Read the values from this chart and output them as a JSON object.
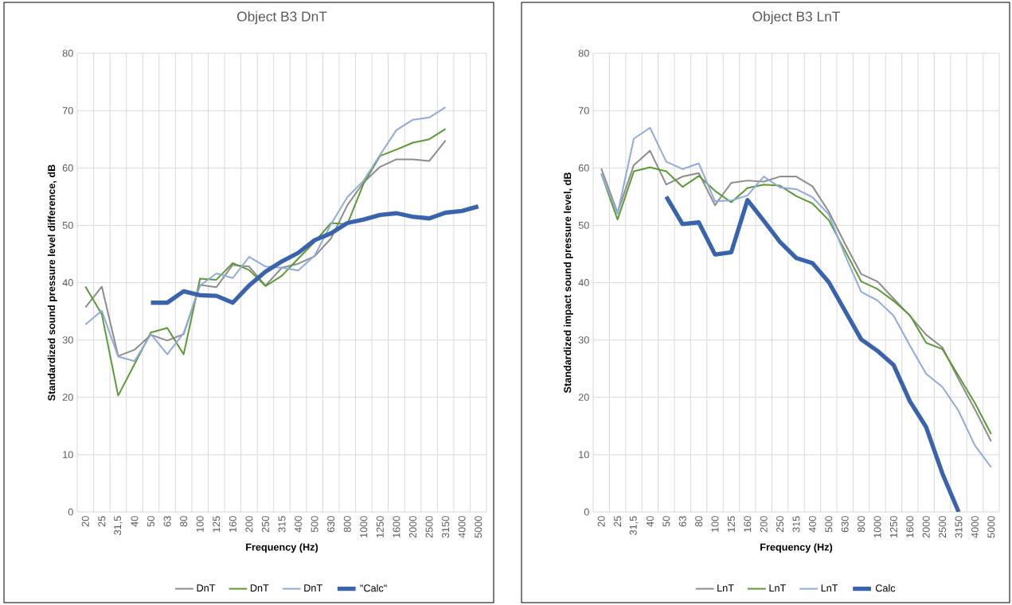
{
  "chart_data": [
    {
      "type": "line",
      "title": "Object B3 DnT",
      "xlabel": "Frequency (Hz)",
      "ylabel": "Standardized sound pressure level difference, dB",
      "categories": [
        "20",
        "25",
        "31,5",
        "40",
        "50",
        "63",
        "80",
        "100",
        "125",
        "160",
        "200",
        "250",
        "315",
        "400",
        "500",
        "630",
        "800",
        "1000",
        "1250",
        "1600",
        "2000",
        "2500",
        "3150",
        "4000",
        "5000"
      ],
      "series": [
        {
          "name": "DnT",
          "color": "#8c8c8c",
          "values": [
            35.7,
            39.3,
            27.2,
            28.3,
            30.9,
            29.9,
            31.0,
            39.6,
            39.2,
            43.1,
            42.8,
            39.5,
            42.6,
            43.3,
            44.6,
            47.7,
            53.5,
            57.5,
            60.2,
            61.5,
            61.5,
            61.2,
            64.8,
            null,
            null
          ]
        },
        {
          "name": "DnT",
          "color": "#5b9b35",
          "values": [
            39.3,
            34.5,
            20.3,
            25.8,
            31.3,
            32.1,
            27.5,
            40.7,
            40.5,
            43.4,
            42.2,
            39.4,
            41.2,
            44.2,
            47.1,
            50.4,
            50.2,
            57.3,
            62.1,
            63.2,
            64.4,
            65.0,
            66.8,
            null,
            null
          ]
        },
        {
          "name": "DnT",
          "color": "#8faadc",
          "values": [
            32.7,
            35.1,
            27.1,
            26.3,
            31.0,
            27.5,
            31.2,
            39.5,
            41.6,
            40.8,
            44.5,
            42.8,
            42.6,
            42.1,
            44.7,
            50.2,
            54.9,
            57.8,
            62.3,
            66.6,
            68.4,
            68.8,
            70.6,
            null,
            null
          ]
        },
        {
          "name": "\"Calc\"",
          "color": "#3a63ad",
          "values": [
            null,
            null,
            null,
            null,
            36.5,
            36.5,
            38.5,
            37.8,
            37.7,
            36.5,
            39.5,
            41.9,
            43.7,
            45.2,
            47.4,
            48.6,
            50.4,
            51.0,
            51.8,
            52.1,
            51.5,
            51.2,
            52.2,
            52.5,
            53.3
          ]
        }
      ],
      "ylim": [
        0,
        80
      ],
      "yticks": [
        0,
        10,
        20,
        30,
        40,
        50,
        60,
        70,
        80
      ],
      "grid": true,
      "legend": "bottom",
      "marker": "none",
      "line_style": "solid"
    },
    {
      "type": "line",
      "title": "Object B3 LnT",
      "xlabel": "Frequency (Hz)",
      "ylabel": "Standardized impact sound pressure level, dB",
      "categories": [
        "20",
        "25",
        "31,5",
        "40",
        "50",
        "63",
        "80",
        "100",
        "125",
        "160",
        "200",
        "250",
        "315",
        "400",
        "500",
        "630",
        "800",
        "1000",
        "1250",
        "1600",
        "2000",
        "2500",
        "3150",
        "4000",
        "5000"
      ],
      "series": [
        {
          "name": "LnT",
          "color": "#8c8c8c",
          "values": [
            59.9,
            52.2,
            60.5,
            63.0,
            57.1,
            58.5,
            59.1,
            53.5,
            57.4,
            57.8,
            57.6,
            58.5,
            58.5,
            56.8,
            52.4,
            46.8,
            41.5,
            40.2,
            37.2,
            34.2,
            30.9,
            28.7,
            23.1,
            17.9,
            12.3
          ]
        },
        {
          "name": "LnT",
          "color": "#5b9b35",
          "values": [
            59.0,
            51.0,
            59.4,
            60.1,
            59.4,
            56.7,
            58.6,
            56.0,
            54.0,
            56.5,
            57.1,
            56.9,
            55.1,
            53.8,
            50.9,
            45.6,
            40.2,
            38.9,
            36.8,
            34.3,
            29.5,
            28.4,
            23.7,
            19.0,
            13.6
          ]
        },
        {
          "name": "LnT",
          "color": "#8faadc",
          "values": [
            59.0,
            52.0,
            65.1,
            67.0,
            61.1,
            59.8,
            60.8,
            54.2,
            54.3,
            55.2,
            58.5,
            56.6,
            56.3,
            54.9,
            51.9,
            44.8,
            38.4,
            36.9,
            34.2,
            29.0,
            24.1,
            21.8,
            17.6,
            11.6,
            7.8
          ]
        },
        {
          "name": "Calc",
          "color": "#3a63ad",
          "values": [
            null,
            null,
            null,
            null,
            55.0,
            50.2,
            50.5,
            44.9,
            45.3,
            54.4,
            50.8,
            47.1,
            44.3,
            43.4,
            40.1,
            35.1,
            30.1,
            28.1,
            25.6,
            19.3,
            14.8,
            6.7,
            0,
            null,
            null
          ]
        }
      ],
      "ylim": [
        0,
        80
      ],
      "yticks": [
        0,
        10,
        20,
        30,
        40,
        50,
        60,
        70,
        80
      ],
      "grid": true,
      "legend": "bottom",
      "marker": "none",
      "line_style": "solid"
    }
  ]
}
